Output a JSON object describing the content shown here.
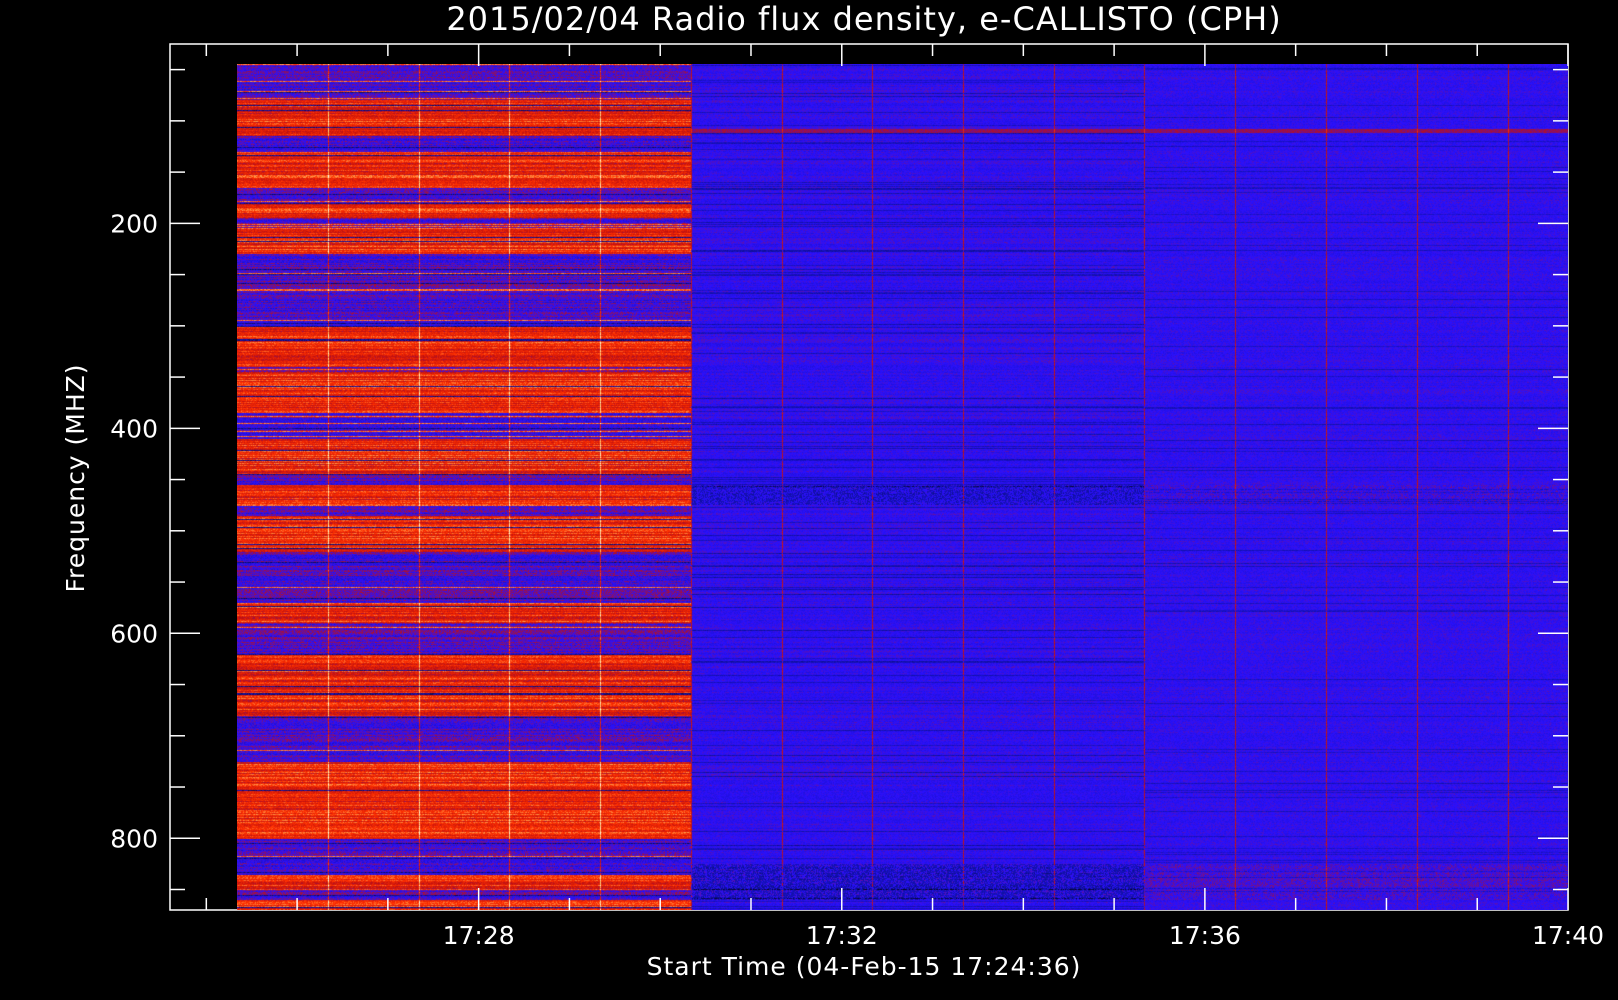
{
  "chart_data": {
    "type": "heatmap",
    "title": "2015/02/04  Radio flux density, e-CALLISTO (CPH)",
    "xlabel": "Start Time (04-Feb-15 17:24:36)",
    "ylabel": "Frequency (MHZ)",
    "x_axis": {
      "type": "time",
      "range": [
        "17:24:36",
        "17:40:00"
      ],
      "data_range": [
        "17:25:20",
        "17:40:00"
      ],
      "major_ticks": [
        "17:28",
        "17:32",
        "17:36",
        "17:40"
      ],
      "minor_tick_interval_minutes": 1
    },
    "y_axis": {
      "range": [
        870,
        25
      ],
      "inverted": true,
      "data_range": [
        45,
        870
      ],
      "major_ticks": [
        200,
        400,
        600,
        800
      ],
      "minor_tick_interval": 50
    },
    "colormap": [
      "#000000",
      "#1010a0",
      "#2a10ff",
      "#c01010",
      "#ff3000",
      "#ffd070",
      "#ffffff"
    ],
    "segments": [
      {
        "start": "17:25:20",
        "end": "17:30:20",
        "level": "high (red/orange)"
      },
      {
        "start": "17:30:20",
        "end": "17:35:20",
        "level": "low (blue)"
      },
      {
        "start": "17:35:20",
        "end": "17:40:00",
        "level": "low (blue, darker)"
      }
    ],
    "strong_bands_mhz": [
      [
        80,
        115
      ],
      [
        130,
        165
      ],
      [
        180,
        195
      ],
      [
        205,
        230
      ],
      [
        300,
        340
      ],
      [
        345,
        385
      ],
      [
        410,
        445
      ],
      [
        455,
        475
      ],
      [
        485,
        520
      ],
      [
        570,
        590
      ],
      [
        620,
        680
      ],
      [
        725,
        800
      ],
      [
        835,
        850
      ],
      [
        860,
        870
      ]
    ],
    "periodic_spikes_every_minutes": 1
  }
}
